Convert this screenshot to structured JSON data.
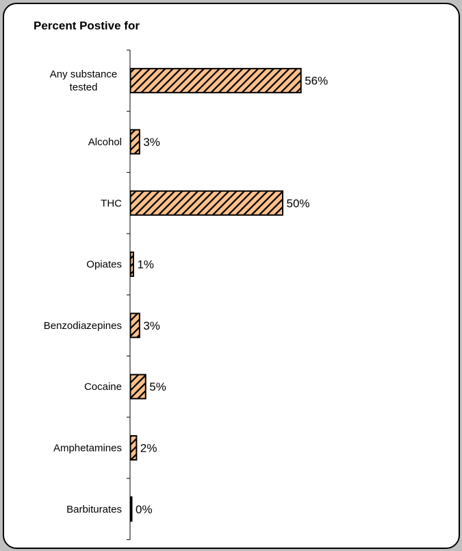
{
  "chart_data": {
    "type": "bar",
    "orientation": "horizontal",
    "title": "Percent Postive for",
    "categories": [
      [
        "Any substance",
        "tested"
      ],
      [
        "Alcohol"
      ],
      [
        "THC"
      ],
      [
        "Opiates"
      ],
      [
        "Benzodiazepines"
      ],
      [
        "Cocaine"
      ],
      [
        "Amphetamines"
      ],
      [
        "Barbiturates"
      ]
    ],
    "values": [
      56,
      3,
      50,
      1,
      3,
      5,
      2,
      0
    ],
    "value_labels": [
      "56%",
      "3%",
      "50%",
      "1%",
      "3%",
      "5%",
      "2%",
      "0%"
    ],
    "xlim": [
      0,
      60
    ],
    "grid": false,
    "bar_fill": "#ffc08c",
    "bar_hatch_color": "#000000",
    "bar_border": "#000000"
  },
  "frame": {
    "background": "#ffffff",
    "outer_background": "#c0c0c0"
  }
}
